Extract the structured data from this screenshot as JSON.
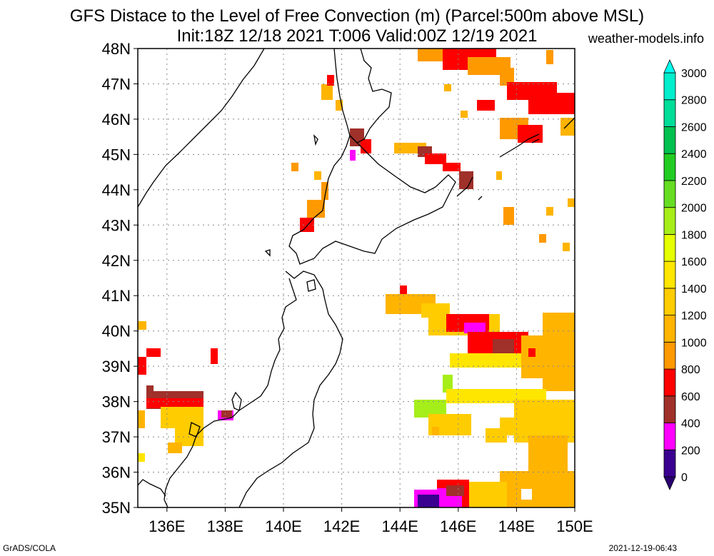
{
  "title": {
    "line1": "GFS Distace to the Level of Free Convection (m) (Parcel:500m above MSL)",
    "line2": "Init:18Z 12/18 2021 T:006 Valid:00Z 12/19 2021"
  },
  "credits": {
    "site": "weather-models.info",
    "software": "GrADS/COLA",
    "timestamp": "2021-12-19-06:43"
  },
  "map": {
    "lat_labels": [
      "48N",
      "47N",
      "46N",
      "45N",
      "44N",
      "43N",
      "42N",
      "41N",
      "40N",
      "39N",
      "38N",
      "37N",
      "36N",
      "35N"
    ],
    "lon_labels": [
      "136E",
      "138E",
      "140E",
      "142E",
      "144E",
      "146E",
      "148E",
      "150E"
    ],
    "lat_range": [
      35,
      48
    ],
    "lon_range": [
      135,
      150
    ]
  },
  "colorbar": {
    "levels": [
      "0",
      "200",
      "400",
      "600",
      "800",
      "1000",
      "1200",
      "1400",
      "1600",
      "1800",
      "2000",
      "2200",
      "2400",
      "2600",
      "2800",
      "3000"
    ],
    "colors": [
      "#3a0090",
      "#ff00ff",
      "#a0302a",
      "#ff0000",
      "#ff9900",
      "#ffb400",
      "#ffcc00",
      "#ffe600",
      "#e6ff00",
      "#a6ee1a",
      "#66dd22",
      "#22cc22",
      "#00c050",
      "#00dd99",
      "#00eecc",
      "#00ffee"
    ]
  },
  "field_patches": [
    {
      "lon": [
        145.5,
        150
      ],
      "lat": [
        47.2,
        48
      ],
      "cls": "red-orange"
    },
    {
      "lon": [
        146.5,
        150
      ],
      "lat": [
        45.5,
        47
      ],
      "cls": "red-orange"
    },
    {
      "lon": [
        142.3,
        146.5
      ],
      "lat": [
        44.4,
        45.6
      ],
      "cls": "brown-red"
    },
    {
      "lon": [
        140.8,
        141.6
      ],
      "lat": [
        42.9,
        44.4
      ],
      "cls": "orange"
    },
    {
      "lon": [
        144.5,
        150
      ],
      "lat": [
        38.2,
        41.2
      ],
      "cls": "yellow"
    },
    {
      "lon": [
        145.5,
        150
      ],
      "lat": [
        35,
        38.3
      ],
      "cls": "yellow"
    },
    {
      "lon": [
        135,
        137.2
      ],
      "lat": [
        36.5,
        38.3
      ],
      "cls": "yellow"
    }
  ]
}
